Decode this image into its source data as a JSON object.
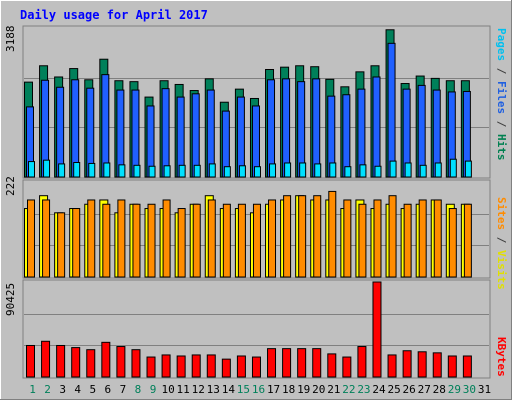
{
  "title": "Daily usage for April 2017",
  "panels": {
    "top": {
      "max_label": "3188",
      "legend": [
        {
          "text": "Pages",
          "color": "#00c0f0"
        },
        {
          "text": " / ",
          "color": "#404040"
        },
        {
          "text": "Files",
          "color": "#2060e0"
        },
        {
          "text": " / ",
          "color": "#404040"
        },
        {
          "text": "Hits",
          "color": "#008050"
        }
      ]
    },
    "middle": {
      "max_label": "222",
      "legend": [
        {
          "text": "Sites",
          "color": "#ff8c00"
        },
        {
          "text": " / ",
          "color": "#404040"
        },
        {
          "text": "Visits",
          "color": "#e0e000"
        }
      ]
    },
    "bottom": {
      "max_label": "90425",
      "legend": [
        {
          "text": "KBytes",
          "color": "#ff0000"
        }
      ]
    }
  },
  "chart_data": {
    "type": "bar",
    "title": "Daily usage for April 2017",
    "categories": [
      "1",
      "2",
      "3",
      "4",
      "5",
      "6",
      "7",
      "8",
      "9",
      "10",
      "11",
      "12",
      "13",
      "14",
      "15",
      "16",
      "17",
      "18",
      "19",
      "20",
      "21",
      "22",
      "23",
      "24",
      "25",
      "26",
      "27",
      "28",
      "29",
      "30",
      "31"
    ],
    "weekend_days": [
      "1",
      "2",
      "8",
      "9",
      "15",
      "16",
      "22",
      "23",
      "29",
      "30"
    ],
    "colors": {
      "background": "#c0c0c0",
      "hits": "#00805a",
      "files": "#2060ff",
      "pages": "#00e0ff",
      "visits": "#ffff00",
      "sites": "#ff8c00",
      "kbytes": "#ff0000",
      "title": "#0000ff",
      "weekday_label": "#000000",
      "weekend_label": "#00805a"
    },
    "panels": [
      {
        "ylim": [
          0,
          3188
        ],
        "series": [
          {
            "name": "Hits",
            "values": [
              2030,
              2380,
              2140,
              2320,
              2080,
              2520,
              2060,
              2040,
              1710,
              2060,
              1980,
              1850,
              2100,
              1600,
              1880,
              1680,
              2300,
              2350,
              2380,
              2360,
              2090,
              1930,
              2250,
              2380,
              3150,
              2000,
              2160,
              2110,
              2060,
              2060,
              null
            ]
          },
          {
            "name": "Files",
            "values": [
              1500,
              2070,
              1920,
              2080,
              1900,
              2190,
              1860,
              1860,
              1520,
              1890,
              1710,
              1780,
              1860,
              1410,
              1710,
              1520,
              2080,
              2100,
              2040,
              2100,
              1730,
              1760,
              1880,
              2140,
              2860,
              1880,
              1960,
              1860,
              1820,
              1830,
              null
            ]
          },
          {
            "name": "Pages",
            "values": [
              330,
              360,
              280,
              310,
              290,
              300,
              260,
              250,
              230,
              240,
              250,
              250,
              280,
              220,
              240,
              220,
              280,
              300,
              300,
              280,
              300,
              220,
              260,
              230,
              340,
              300,
              250,
              300,
              380,
              340,
              null
            ]
          }
        ]
      },
      {
        "ylim": [
          0,
          222
        ],
        "series": [
          {
            "name": "Visits",
            "values": [
              160,
              190,
              150,
              160,
              170,
              180,
              150,
              170,
              160,
              160,
              150,
              170,
              190,
              160,
              160,
              150,
              170,
              180,
              190,
              180,
              180,
              160,
              180,
              160,
              170,
              160,
              170,
              180,
              170,
              170,
              null
            ]
          },
          {
            "name": "Sites",
            "values": [
              180,
              180,
              150,
              160,
              180,
              170,
              180,
              170,
              170,
              180,
              160,
              170,
              180,
              170,
              170,
              170,
              180,
              190,
              190,
              190,
              200,
              180,
              170,
              180,
              190,
              170,
              180,
              180,
              160,
              170,
              null
            ]
          }
        ]
      },
      {
        "ylim": [
          0,
          90425
        ],
        "series": [
          {
            "name": "KBytes",
            "values": [
              30000,
              34000,
              30000,
              28000,
              26000,
              33000,
              29000,
              26000,
              19000,
              21000,
              20000,
              21000,
              21000,
              17000,
              20000,
              19000,
              27000,
              27000,
              27000,
              27000,
              22000,
              19000,
              29000,
              90425,
              21000,
              25000,
              24000,
              23000,
              20000,
              20000,
              null
            ]
          }
        ]
      }
    ]
  }
}
